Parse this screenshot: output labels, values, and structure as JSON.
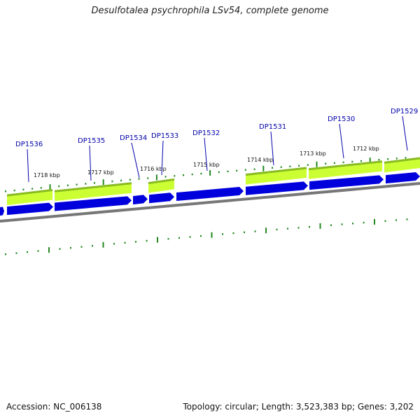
{
  "title": "Desulfotalea psychrophila LSv54, complete genome",
  "footer": {
    "accession": "Accession: NC_006138",
    "summary": "Topology: circular; Length: 3,523,383 bp; Genes: 3,202"
  },
  "colors": {
    "gene_forward_fill": "#ccff33",
    "gene_forward_edge": "#88bb22",
    "gene_reverse_fill": "#0000dd",
    "backbone": "#777777",
    "tick": "#228822",
    "gene_label": "#0000aa"
  },
  "scale_labels": [
    "1718 kbp",
    "1717 kbp",
    "1716 kbp",
    "1715 kbp",
    "1714 kbp",
    "1713 kbp",
    "1712 kbp"
  ],
  "gene_labels": [
    "DP1536",
    "DP1535",
    "DP1534",
    "DP1533",
    "DP1532",
    "DP1531",
    "DP1530",
    "DP1529"
  ]
}
